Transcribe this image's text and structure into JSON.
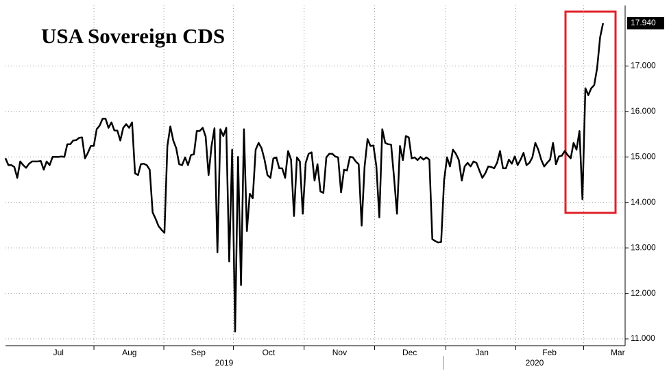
{
  "chart_data": {
    "type": "line",
    "title": "USA Sovereign CDS",
    "series": [
      {
        "name": "USA Sovereign CDS",
        "color": "#000000",
        "values": [
          14.97,
          14.82,
          14.82,
          14.78,
          14.54,
          14.9,
          14.82,
          14.76,
          14.85,
          14.9,
          14.9,
          14.9,
          14.91,
          14.72,
          14.9,
          14.82,
          15.0,
          15.0,
          15.0,
          15.01,
          15.0,
          15.28,
          15.28,
          15.36,
          15.37,
          15.42,
          15.43,
          14.97,
          15.09,
          15.24,
          15.24,
          15.61,
          15.69,
          15.84,
          15.84,
          15.64,
          15.76,
          15.58,
          15.58,
          15.36,
          15.64,
          15.72,
          15.64,
          15.76,
          14.64,
          14.6,
          14.84,
          14.85,
          14.82,
          14.72,
          13.78,
          13.64,
          13.48,
          13.4,
          13.33,
          15.24,
          15.67,
          15.36,
          15.19,
          14.84,
          14.82,
          14.99,
          14.82,
          15.04,
          15.06,
          15.57,
          15.57,
          15.64,
          15.45,
          14.6,
          15.24,
          15.63,
          12.9,
          15.61,
          15.46,
          15.64,
          12.7,
          15.16,
          11.16,
          15.0,
          12.18,
          15.61,
          13.37,
          14.19,
          14.09,
          15.16,
          15.31,
          15.19,
          14.94,
          14.6,
          14.54,
          14.97,
          14.99,
          14.75,
          14.75,
          14.54,
          15.13,
          14.94,
          13.7,
          14.99,
          14.9,
          13.75,
          14.87,
          15.07,
          15.1,
          14.48,
          14.84,
          14.24,
          14.21,
          14.99,
          15.07,
          15.07,
          15.01,
          14.99,
          14.22,
          14.72,
          14.7,
          15.0,
          14.99,
          14.9,
          14.84,
          13.49,
          14.79,
          15.39,
          15.24,
          15.25,
          14.79,
          13.67,
          15.61,
          15.31,
          15.28,
          15.27,
          14.54,
          13.75,
          15.24,
          14.93,
          15.46,
          15.43,
          14.97,
          14.99,
          14.93,
          15.0,
          14.94,
          14.99,
          14.94,
          13.19,
          13.15,
          13.12,
          13.13,
          14.49,
          14.99,
          14.79,
          15.16,
          15.07,
          14.93,
          14.48,
          14.79,
          14.87,
          14.79,
          14.9,
          14.87,
          14.7,
          14.54,
          14.64,
          14.79,
          14.78,
          14.75,
          14.87,
          15.13,
          14.75,
          14.75,
          14.94,
          14.85,
          15.01,
          14.82,
          14.94,
          15.09,
          14.82,
          14.87,
          14.99,
          15.31,
          15.16,
          14.94,
          14.79,
          14.87,
          14.94,
          15.31,
          14.84,
          15.01,
          15.03,
          15.13,
          15.04,
          14.97,
          15.31,
          15.16,
          15.57,
          14.07,
          16.51,
          16.36,
          16.51,
          16.58,
          16.96,
          17.63,
          17.94
        ]
      }
    ],
    "last_value_label": "17.940",
    "xlim": [
      0,
      210.5
    ],
    "xticks": [
      {
        "value": 18,
        "label": "Jul"
      },
      {
        "value": 42.1,
        "label": "Aug"
      },
      {
        "value": 65.5,
        "label": "Sep"
      },
      {
        "value": 89.4,
        "label": "Oct"
      },
      {
        "value": 113.5,
        "label": "Nov"
      },
      {
        "value": 137.3,
        "label": "Dec"
      },
      {
        "value": 161.9,
        "label": "Jan"
      },
      {
        "value": 184.8,
        "label": "Feb"
      },
      {
        "value": 208,
        "label": "Mar"
      }
    ],
    "years": [
      "2019",
      "2020"
    ],
    "ylim": [
      10.85,
      18.33
    ],
    "yticks": [
      {
        "value": 11,
        "label": "11.000"
      },
      {
        "value": 12,
        "label": "12.000"
      },
      {
        "value": 13,
        "label": "13.000"
      },
      {
        "value": 14,
        "label": "14.000"
      },
      {
        "value": 15,
        "label": "15.000"
      },
      {
        "value": 16,
        "label": "16.000"
      },
      {
        "value": 17,
        "label": "17.000"
      }
    ],
    "grid": true
  }
}
